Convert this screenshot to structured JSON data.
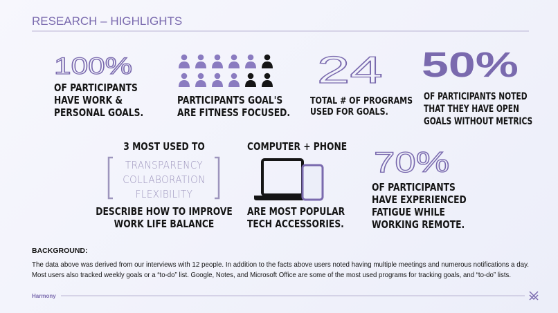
{
  "header": {
    "title": "RESEARCH – HIGHLIGHTS"
  },
  "stats": [
    {
      "value": "100%",
      "lines": [
        "OF PARTICIPANTS",
        "HAVE WORK &",
        "PERSONAL GOALS."
      ]
    },
    {
      "lines": [
        "PARTICIPANTS GOAL'S",
        "ARE FITNESS FOCUSED."
      ]
    },
    {
      "value": "24",
      "lines": [
        "TOTAL # OF PROGRAMS",
        "USED FOR GOALS."
      ]
    },
    {
      "value": "50%",
      "lines": [
        "OF PARTICIPANTS NOTED",
        "THAT THEY HAVE OPEN",
        "GOALS WITHOUT METRICS"
      ]
    },
    {
      "heading": "3 MOST USED TO",
      "words": [
        "TRANSPARENCY",
        "COLLABORATION",
        "FLEXIBILITY"
      ],
      "lines": [
        "DESCRIBE HOW TO IMPROVE",
        "WORK LIFE BALANCE"
      ]
    },
    {
      "heading": "COMPUTER + PHONE",
      "lines": [
        "ARE MOST POPULAR",
        "TECH ACCESSORIES."
      ]
    },
    {
      "value": "70%",
      "lines": [
        "OF PARTICIPANTS",
        "HAVE EXPERIENCED",
        "FATIGUE WHILE",
        "WORKING REMOTE."
      ]
    }
  ],
  "background": {
    "heading": "BACKGROUND:",
    "lines": [
      "The data above was derived from our interviews with 12 people. In addition to the facts above users noted having multiple meetings and numerous notifications a day.",
      "Most users also tracked weekly goals or a “to-do” list. Google, Notes, and Microsoft Office are some of the most used programs for tracking goals, and “to-do” lists."
    ]
  },
  "footer": {
    "brand": "Harmony"
  }
}
